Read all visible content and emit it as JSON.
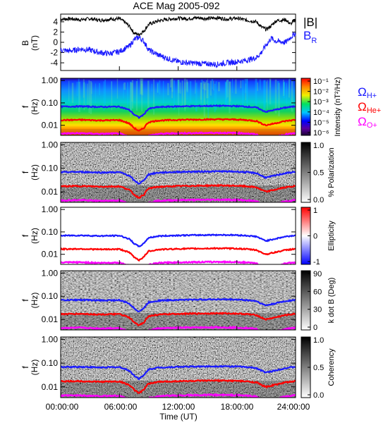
{
  "title": "ACE Mag 2005-092",
  "x_axis": {
    "label": "Time (UT)",
    "ticks": [
      "00:00:00",
      "06:00:00",
      "12:00:00",
      "18:00:00",
      "24:00:00"
    ],
    "range_hours": [
      0,
      24
    ]
  },
  "legend_top": [
    {
      "label": "|B|",
      "color": "#000000"
    },
    {
      "label": "B",
      "sub": "R",
      "color": "#1a1aff"
    }
  ],
  "legend_freq": [
    {
      "label": "Ω",
      "sub": "H+",
      "color": "#1a1aff"
    },
    {
      "label": "Ω",
      "sub": "He+",
      "color": "#ff0000"
    },
    {
      "label": "Ω",
      "sub": "O+",
      "color": "#ff00ff"
    }
  ],
  "colors": {
    "bmag": "#000000",
    "br": "#1a1aff",
    "gyro_h": "#1a1aff",
    "gyro_he": "#ff0000",
    "gyro_o": "#ff00ff"
  },
  "panels": [
    {
      "id": "field",
      "ylabel": "B",
      "yunit": "(nT)",
      "yticks": [
        "4",
        "2",
        "0",
        "-2",
        "-4"
      ],
      "ylim": [
        -5.5,
        5.5
      ]
    },
    {
      "id": "power",
      "ylabel": "f",
      "yunit": "(Hz)",
      "yticks": [
        "1.00",
        "0.10",
        "0.01"
      ],
      "colormap": "rainbow",
      "cbar_ticks": [
        "10⁻¹",
        "10⁻²",
        "10⁻³",
        "10⁻⁴",
        "10⁻⁵",
        "10⁻⁶"
      ],
      "cbar_label": "Intensity (nT²/Hz)"
    },
    {
      "id": "polarization",
      "ylabel": "f",
      "yunit": "(Hz)",
      "yticks": [
        "1.00",
        "0.10",
        "0.01"
      ],
      "colormap": "gray",
      "cbar_ticks": [
        "1.0",
        "0.5",
        "0.0"
      ],
      "cbar_label": "% Polarization"
    },
    {
      "id": "ellipticity",
      "ylabel": "f",
      "yunit": "(Hz)",
      "yticks": [
        "1.00",
        "0.10",
        "0.01"
      ],
      "colormap": "bwr",
      "cbar_ticks": [
        "1",
        "0",
        "-1"
      ],
      "cbar_label": "Ellipticity"
    },
    {
      "id": "kdotb",
      "ylabel": "f",
      "yunit": "(Hz)",
      "yticks": [
        "1.00",
        "0.10",
        "0.01"
      ],
      "colormap": "gray",
      "cbar_ticks": [
        "90",
        "60",
        "30",
        "0"
      ],
      "cbar_label": "k dot B (Deg)"
    },
    {
      "id": "coherency",
      "ylabel": "f",
      "yunit": "(Hz)",
      "yticks": [
        "1.00",
        "0.10",
        "0.01"
      ],
      "colormap": "gray",
      "cbar_ticks": [
        "1.0",
        "0.5",
        "0.0"
      ],
      "cbar_label": "Coherency"
    }
  ],
  "chart_data": [
    {
      "type": "line",
      "ylim": [
        -5.5,
        5.5
      ],
      "x_hours": [
        0,
        1,
        2,
        3,
        4,
        5,
        6,
        6.5,
        7,
        7.5,
        8,
        8.5,
        9,
        10,
        11,
        12,
        13,
        14,
        15,
        16,
        17,
        18,
        19,
        20,
        20.5,
        21,
        21.5,
        22,
        23,
        23.5,
        24
      ],
      "series": [
        {
          "name": "|B|",
          "values": [
            4.5,
            4.6,
            4.4,
            4.6,
            4.3,
            4.5,
            4.6,
            4.0,
            3.2,
            1.8,
            1.5,
            2.2,
            3.5,
            4.2,
            4.5,
            4.7,
            4.6,
            4.8,
            4.6,
            4.8,
            4.5,
            4.7,
            4.3,
            4.0,
            3.0,
            2.5,
            3.2,
            4.2,
            4.4,
            3.5,
            4.6
          ]
        },
        {
          "name": "B",
          "values": [
            -1.5,
            -1.7,
            -1.3,
            -1.5,
            -2.0,
            -2.2,
            -1.8,
            -1.3,
            -0.8,
            0.5,
            1.0,
            0.2,
            -1.5,
            -2.5,
            -3.2,
            -3.8,
            -4.0,
            -4.1,
            -4.2,
            -4.3,
            -4.0,
            -3.8,
            -3.5,
            -3.0,
            -2.0,
            -0.5,
            0.8,
            0.2,
            0.0,
            1.0,
            1.8
          ]
        }
      ]
    },
    {
      "type": "line",
      "ylim_log10": [
        -2.45,
        0.1
      ],
      "x_hours": [
        0,
        2,
        4,
        6,
        6.5,
        7,
        7.5,
        8,
        8.5,
        9,
        10,
        12,
        14,
        16,
        18,
        19,
        20,
        20.5,
        21,
        22,
        23,
        24
      ],
      "series": [
        {
          "name": "Ω H+",
          "values": [
            0.068,
            0.07,
            0.066,
            0.068,
            0.058,
            0.048,
            0.03,
            0.022,
            0.03,
            0.055,
            0.065,
            0.07,
            0.072,
            0.074,
            0.072,
            0.068,
            0.062,
            0.048,
            0.04,
            0.05,
            0.062,
            0.07
          ]
        },
        {
          "name": "Ω He+",
          "values": [
            0.017,
            0.0175,
            0.0165,
            0.017,
            0.0145,
            0.012,
            0.0075,
            0.0055,
            0.0075,
            0.0138,
            0.0163,
            0.0175,
            0.018,
            0.0185,
            0.018,
            0.017,
            0.0155,
            0.012,
            0.01,
            0.0125,
            0.0155,
            0.0175
          ]
        },
        {
          "name": "Ω O+",
          "values": [
            0.0043,
            0.0044,
            0.0041,
            0.0043,
            0.0036,
            0.003,
            0.0019,
            0.0014,
            0.0019,
            0.0034,
            0.0041,
            0.0044,
            0.0045,
            0.0046,
            0.0045,
            0.0043,
            0.0039,
            0.003,
            0.0025,
            0.0031,
            0.0039,
            0.0044
          ]
        }
      ]
    }
  ]
}
